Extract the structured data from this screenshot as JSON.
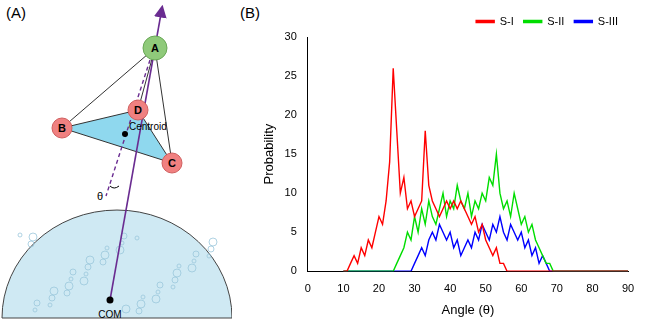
{
  "panels": {
    "a": "(A)",
    "b": "(B)"
  },
  "diagram": {
    "nodes": [
      "A",
      "B",
      "C",
      "D"
    ],
    "centroid_label": "Centroid",
    "angle_label": "θ",
    "com_label": "COM"
  },
  "chart_data": {
    "type": "line",
    "x_label": "Angle (θ)",
    "y_label": "Probability",
    "x": [
      10,
      11,
      12,
      13,
      14,
      15,
      16,
      17,
      18,
      19,
      20,
      21,
      22,
      23,
      24,
      25,
      26,
      27,
      28,
      29,
      30,
      31,
      32,
      33,
      34,
      35,
      36,
      37,
      38,
      39,
      40,
      41,
      42,
      43,
      44,
      45,
      46,
      47,
      48,
      49,
      50,
      51,
      52,
      53,
      54,
      55,
      56,
      57,
      58,
      59,
      60,
      61,
      62,
      63,
      64,
      65,
      66,
      67,
      68,
      69,
      70,
      71,
      72,
      73,
      74,
      75,
      76,
      77,
      78,
      79,
      80,
      81,
      82,
      83,
      84,
      85,
      86,
      87,
      88,
      89,
      90
    ],
    "series": [
      {
        "name": "S-I",
        "color": "#ff0000",
        "values": [
          0,
          0,
          1,
          2,
          1,
          3,
          2,
          4,
          3,
          5,
          7,
          6,
          9,
          14,
          26,
          18,
          10,
          12,
          8,
          9,
          7,
          8,
          9,
          18,
          11,
          9,
          8,
          7,
          8,
          9,
          8,
          9,
          8,
          9,
          8,
          7,
          6,
          7,
          5,
          6,
          4,
          3,
          2,
          3,
          1,
          1,
          0,
          0,
          0,
          0,
          0,
          0,
          0,
          0,
          0,
          0,
          0,
          0,
          0,
          0,
          0,
          0,
          0,
          0,
          0,
          0,
          0,
          0,
          0,
          0,
          0,
          0,
          0,
          0,
          0,
          0,
          0,
          0,
          0,
          0,
          0
        ]
      },
      {
        "name": "S-II",
        "color": "#00dd00",
        "values": [
          0,
          0,
          0,
          0,
          0,
          0,
          0,
          0,
          0,
          0,
          0,
          0,
          0,
          0,
          0,
          1,
          2,
          3,
          5,
          4,
          7,
          5,
          8,
          6,
          9,
          7,
          6,
          8,
          10,
          7,
          9,
          8,
          11,
          9,
          8,
          10,
          7,
          9,
          8,
          10,
          9,
          12,
          11,
          15,
          10,
          8,
          9,
          7,
          10,
          8,
          6,
          7,
          5,
          6,
          4,
          3,
          2,
          1,
          1,
          0,
          0,
          0,
          0,
          0,
          0,
          0,
          0,
          0,
          0,
          0,
          0,
          0,
          0,
          0,
          0,
          0,
          0,
          0,
          0,
          0,
          0
        ]
      },
      {
        "name": "S-III",
        "color": "#0000ff",
        "values": [
          0,
          0,
          0,
          0,
          0,
          0,
          0,
          0,
          0,
          0,
          0,
          0,
          0,
          0,
          0,
          0,
          0,
          0,
          0,
          0,
          1,
          2,
          3,
          2,
          4,
          5,
          4,
          6,
          5,
          4,
          5,
          3,
          4,
          2,
          3,
          4,
          3,
          5,
          4,
          6,
          5,
          4,
          6,
          5,
          7,
          5,
          4,
          6,
          5,
          4,
          5,
          3,
          4,
          2,
          3,
          1,
          2,
          1,
          0,
          0,
          0,
          0,
          0,
          0,
          0,
          0,
          0,
          0,
          0,
          0,
          0,
          0,
          0,
          0,
          0,
          0,
          0,
          0,
          0,
          0,
          0
        ]
      }
    ],
    "xlim": [
      0,
      90
    ],
    "xticks": [
      0,
      10,
      20,
      30,
      40,
      50,
      60,
      70,
      80,
      90
    ],
    "ylim": [
      0,
      30
    ],
    "yticks": [
      0,
      5,
      10,
      15,
      20,
      25,
      30
    ],
    "grid": false,
    "legend": "top-right"
  }
}
